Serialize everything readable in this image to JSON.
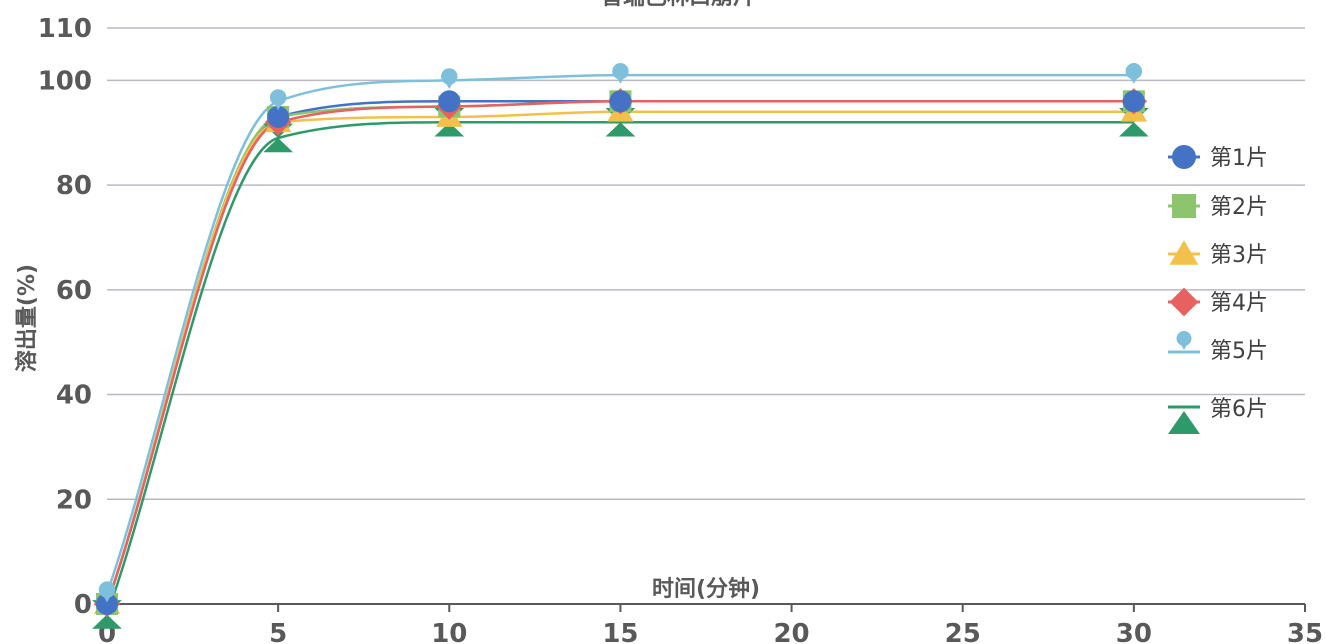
{
  "chart_data": {
    "type": "scatter",
    "title": "普瑞巴林口崩片",
    "xlabel": "时间(分钟)",
    "ylabel": "溶出量(%)",
    "xlim": [
      0,
      35
    ],
    "ylim": [
      0,
      110
    ],
    "x_ticks": [
      "0",
      "5",
      "10",
      "15",
      "20",
      "25",
      "30",
      "35"
    ],
    "y_ticks": [
      "0",
      "20",
      "40",
      "60",
      "80",
      "100",
      "110"
    ],
    "grid": "horizontal",
    "smooth_lines": true,
    "legend_position": "right",
    "x": [
      0,
      5,
      10,
      15,
      30
    ],
    "series": [
      {
        "name": "第1片",
        "marker": "circle",
        "color": "#4472c4",
        "values": [
          0,
          93,
          96,
          96,
          96
        ]
      },
      {
        "name": "第2片",
        "marker": "square",
        "color": "#8cc56e",
        "values": [
          0,
          93,
          95,
          96,
          96
        ]
      },
      {
        "name": "第3片",
        "marker": "triangle",
        "color": "#f4c04c",
        "values": [
          0,
          92,
          93,
          94,
          94
        ]
      },
      {
        "name": "第4片",
        "marker": "diamond",
        "color": "#e86161",
        "values": [
          0,
          92,
          95,
          96,
          96
        ]
      },
      {
        "name": "第5片",
        "marker": "pin",
        "color": "#7ec0dc",
        "values": [
          2,
          96,
          100,
          101,
          101
        ]
      },
      {
        "name": "第6片",
        "marker": "bowtie",
        "color": "#2e9a6a",
        "values": [
          -2,
          89,
          92,
          92,
          92
        ]
      }
    ]
  },
  "colors": {
    "grid": "#b9b9c2",
    "axis": "#595959",
    "text": "#595959"
  }
}
